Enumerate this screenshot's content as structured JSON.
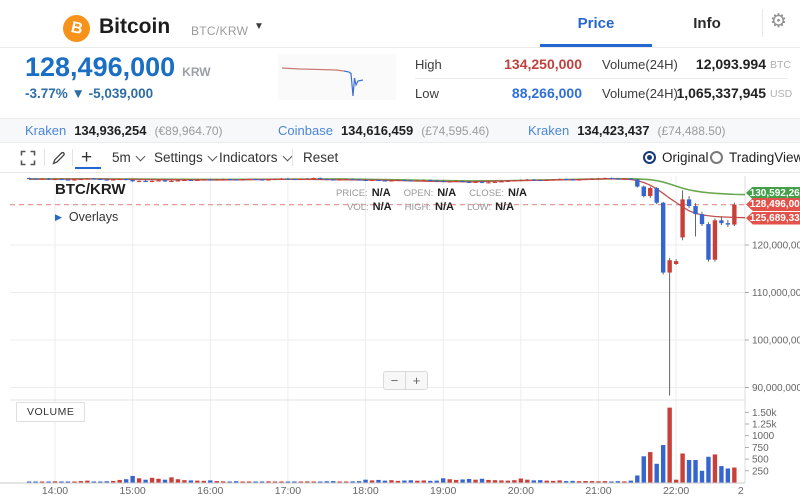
{
  "header": {
    "coin": "Bitcoin",
    "pair": "BTC/KRW",
    "tab_price": "Price",
    "tab_info": "Info"
  },
  "summary": {
    "price": "128,496,000",
    "currency": "KRW",
    "change": "-3.77% ▼ -5,039,000"
  },
  "stats": {
    "high_label": "High",
    "high_value": "134,250,000",
    "low_label": "Low",
    "low_value": "88,266,000",
    "vol_label": "Volume(24H)",
    "vol_btc": "12,093.994",
    "btc_unit": "BTC",
    "vol_usd": "1,065,337,945",
    "usd_unit": "USD"
  },
  "markets": [
    {
      "exchange": "Kraken",
      "price": "134,936,254",
      "fiat": "(€89,964.70)"
    },
    {
      "exchange": "Coinbase",
      "price": "134,616,459",
      "fiat": "(£74,595.46)"
    },
    {
      "exchange": "Kraken",
      "price": "134,423,437",
      "fiat": "(£74,488.50)"
    }
  ],
  "toolbar": {
    "interval": "5m",
    "settings": "Settings",
    "indicators": "Indicators",
    "reset": "Reset",
    "original": "Original",
    "tradingview": "TradingView",
    "plus": "+"
  },
  "chart_ui": {
    "pair": "BTC/KRW",
    "price_label": "PRICE:",
    "open_label": "OPEN:",
    "close_label": "CLOSE:",
    "vol_label": "VOL:",
    "high_label": "HIGH:",
    "low_label": "LOW:",
    "na": "N/A",
    "overlays": "Overlays",
    "volume_pane": "VOLUME",
    "minus": "−",
    "plus": "+",
    "badges": [
      "130,592,260",
      "128,496,000",
      "125,689,333"
    ],
    "badge_colors": [
      "#43a047",
      "#e2524b",
      "#e2524b"
    ]
  },
  "chart_data": {
    "type": "candlestick",
    "pair": "BTC/KRW",
    "interval": "5m",
    "price_unit": "million KRW",
    "current_price": 128.496,
    "colors": {
      "up": "#c9403b",
      "down": "#3565cf",
      "ma_fast": "#bf4f4d",
      "ma_slow": "#6aa84f",
      "wick": "#555555",
      "current_line": "#e29a9a",
      "grid": "#ededed"
    },
    "price_ticks": [
      {
        "v": 120,
        "label": "120,000,000"
      },
      {
        "v": 110,
        "label": "110,000,000"
      },
      {
        "v": 100,
        "label": "100,000,000"
      },
      {
        "v": 90,
        "label": "90,000,000"
      }
    ],
    "volume_ticks": [
      {
        "v": 1500,
        "label": "1.50k"
      },
      {
        "v": 1250,
        "label": "1.25k"
      },
      {
        "v": 1000,
        "label": "1000"
      },
      {
        "v": 750,
        "label": "750"
      },
      {
        "v": 500,
        "label": "500"
      },
      {
        "v": 250,
        "label": "250"
      }
    ],
    "time_labels": [
      {
        "i": 4,
        "label": "14:00"
      },
      {
        "i": 16,
        "label": "15:00"
      },
      {
        "i": 28,
        "label": "16:00"
      },
      {
        "i": 40,
        "label": "17:00"
      },
      {
        "i": 52,
        "label": "18:00"
      },
      {
        "i": 64,
        "label": "19:00"
      },
      {
        "i": 76,
        "label": "20:00"
      },
      {
        "i": 88,
        "label": "21:00"
      },
      {
        "i": 100,
        "label": "22:00"
      },
      {
        "i": 110,
        "label": "2"
      }
    ],
    "ma_slow_points": [
      [
        0,
        133.9
      ],
      [
        10,
        133.95
      ],
      [
        20,
        133.85
      ],
      [
        30,
        133.8
      ],
      [
        40,
        133.85
      ],
      [
        48,
        133.9
      ],
      [
        56,
        133.75
      ],
      [
        62,
        133.6
      ],
      [
        68,
        133.5
      ],
      [
        74,
        133.55
      ],
      [
        80,
        133.7
      ],
      [
        86,
        133.85
      ],
      [
        91,
        133.95
      ],
      [
        94,
        133.9
      ],
      [
        96,
        133.75
      ],
      [
        97,
        133.55
      ],
      [
        98,
        133.25
      ],
      [
        99,
        132.85
      ],
      [
        100,
        132.4
      ],
      [
        101,
        131.95
      ],
      [
        102,
        131.6
      ],
      [
        103,
        131.35
      ],
      [
        104,
        131.15
      ],
      [
        105,
        131.0
      ],
      [
        106,
        130.88
      ],
      [
        107,
        130.8
      ],
      [
        108,
        130.72
      ],
      [
        109,
        130.66
      ],
      [
        112,
        130.59
      ]
    ],
    "ma_fast_points": [
      [
        0,
        133.85
      ],
      [
        10,
        133.9
      ],
      [
        20,
        133.75
      ],
      [
        30,
        133.7
      ],
      [
        40,
        133.85
      ],
      [
        48,
        133.75
      ],
      [
        56,
        133.6
      ],
      [
        62,
        133.4
      ],
      [
        68,
        133.3
      ],
      [
        74,
        133.5
      ],
      [
        80,
        133.65
      ],
      [
        86,
        133.8
      ],
      [
        90,
        133.95
      ],
      [
        93,
        133.8
      ],
      [
        94,
        133.55
      ],
      [
        95,
        133.15
      ],
      [
        96,
        132.6
      ],
      [
        97,
        131.8
      ],
      [
        98,
        130.85
      ],
      [
        99,
        129.85
      ],
      [
        100,
        128.95
      ],
      [
        101,
        128.0
      ],
      [
        102,
        127.2
      ],
      [
        103,
        126.65
      ],
      [
        104,
        126.35
      ],
      [
        105,
        126.15
      ],
      [
        106,
        126.0
      ],
      [
        107,
        125.92
      ],
      [
        108,
        125.87
      ],
      [
        109,
        125.82
      ],
      [
        112,
        125.69
      ]
    ],
    "candles": [
      [
        "13:40",
        134.1,
        134.2,
        133.9,
        134.0,
        18
      ],
      [
        "13:45",
        134.0,
        134.1,
        133.8,
        133.9,
        12
      ],
      [
        "13:50",
        133.9,
        134.1,
        133.8,
        134.0,
        15
      ],
      [
        "13:55",
        134.0,
        134.1,
        133.7,
        133.8,
        20
      ],
      [
        "14:00",
        133.8,
        134.0,
        133.7,
        133.9,
        25
      ],
      [
        "14:05",
        133.9,
        134.0,
        133.7,
        133.8,
        14
      ],
      [
        "14:10",
        133.8,
        133.9,
        133.6,
        133.7,
        16
      ],
      [
        "14:15",
        133.7,
        133.9,
        133.6,
        133.8,
        12
      ],
      [
        "14:20",
        133.8,
        134.0,
        133.7,
        133.9,
        30
      ],
      [
        "14:25",
        133.9,
        134.1,
        133.8,
        134.0,
        40
      ],
      [
        "14:30",
        134.0,
        134.1,
        133.8,
        133.9,
        22
      ],
      [
        "14:35",
        133.9,
        134.0,
        133.7,
        133.8,
        18
      ],
      [
        "14:40",
        133.8,
        133.9,
        133.6,
        133.7,
        26
      ],
      [
        "14:45",
        133.7,
        133.9,
        133.6,
        133.8,
        34
      ],
      [
        "14:50",
        133.8,
        134.0,
        133.7,
        133.9,
        55
      ],
      [
        "14:55",
        133.9,
        134.0,
        133.6,
        133.7,
        70
      ],
      [
        "15:00",
        133.7,
        133.8,
        133.3,
        133.4,
        140
      ],
      [
        "15:05",
        133.4,
        133.6,
        133.2,
        133.5,
        90
      ],
      [
        "15:10",
        133.5,
        133.7,
        133.3,
        133.4,
        60
      ],
      [
        "15:15",
        133.4,
        133.6,
        133.2,
        133.5,
        100
      ],
      [
        "15:20",
        133.5,
        133.7,
        133.4,
        133.6,
        80
      ],
      [
        "15:25",
        133.6,
        133.7,
        133.3,
        133.4,
        60
      ],
      [
        "15:30",
        133.4,
        133.6,
        133.3,
        133.5,
        110
      ],
      [
        "15:35",
        133.5,
        133.7,
        133.4,
        133.6,
        70
      ],
      [
        "15:40",
        133.6,
        133.8,
        133.5,
        133.7,
        50
      ],
      [
        "15:45",
        133.7,
        133.8,
        133.5,
        133.6,
        45
      ],
      [
        "15:50",
        133.6,
        133.8,
        133.5,
        133.7,
        40
      ],
      [
        "15:55",
        133.7,
        133.9,
        133.6,
        133.8,
        35
      ],
      [
        "16:00",
        133.8,
        133.9,
        133.6,
        133.7,
        45
      ],
      [
        "16:05",
        133.7,
        133.9,
        133.6,
        133.8,
        30
      ],
      [
        "16:10",
        133.8,
        134.0,
        133.7,
        133.9,
        25
      ],
      [
        "16:15",
        133.9,
        134.0,
        133.7,
        133.8,
        20
      ],
      [
        "16:20",
        133.8,
        133.9,
        133.6,
        133.7,
        28
      ],
      [
        "16:25",
        133.7,
        133.9,
        133.6,
        133.8,
        18
      ],
      [
        "16:30",
        133.8,
        134.0,
        133.7,
        133.9,
        22
      ],
      [
        "16:35",
        133.9,
        134.0,
        133.7,
        133.8,
        15
      ],
      [
        "16:40",
        133.8,
        133.9,
        133.6,
        133.7,
        20
      ],
      [
        "16:45",
        133.7,
        133.9,
        133.6,
        133.8,
        25
      ],
      [
        "16:50",
        133.8,
        134.0,
        133.7,
        133.9,
        18
      ],
      [
        "16:55",
        133.9,
        134.1,
        133.8,
        134.0,
        22
      ],
      [
        "17:00",
        134.0,
        134.1,
        133.8,
        133.9,
        20
      ],
      [
        "17:05",
        133.9,
        134.0,
        133.7,
        133.8,
        15
      ],
      [
        "17:10",
        133.8,
        134.0,
        133.7,
        133.9,
        18
      ],
      [
        "17:15",
        133.9,
        134.1,
        133.8,
        134.0,
        24
      ],
      [
        "17:20",
        134.0,
        134.2,
        133.9,
        134.1,
        16
      ],
      [
        "17:25",
        134.1,
        134.2,
        133.8,
        133.9,
        20
      ],
      [
        "17:30",
        133.9,
        134.0,
        133.7,
        133.8,
        26
      ],
      [
        "17:35",
        133.8,
        133.9,
        133.6,
        133.7,
        30
      ],
      [
        "17:40",
        133.7,
        133.9,
        133.6,
        133.8,
        22
      ],
      [
        "17:45",
        133.8,
        134.0,
        133.7,
        133.9,
        18
      ],
      [
        "17:50",
        133.9,
        134.0,
        133.7,
        133.8,
        24
      ],
      [
        "17:55",
        133.8,
        133.9,
        133.6,
        133.7,
        28
      ],
      [
        "18:00",
        133.7,
        133.8,
        133.5,
        133.6,
        60
      ],
      [
        "18:05",
        133.6,
        133.8,
        133.5,
        133.7,
        45
      ],
      [
        "18:10",
        133.7,
        133.8,
        133.5,
        133.6,
        55
      ],
      [
        "18:15",
        133.6,
        133.7,
        133.4,
        133.5,
        40
      ],
      [
        "18:20",
        133.5,
        133.7,
        133.4,
        133.6,
        50
      ],
      [
        "18:25",
        133.6,
        133.8,
        133.5,
        133.7,
        35
      ],
      [
        "18:30",
        133.7,
        133.8,
        133.5,
        133.6,
        42
      ],
      [
        "18:35",
        133.6,
        133.7,
        133.4,
        133.5,
        48
      ],
      [
        "18:40",
        133.5,
        133.7,
        133.4,
        133.6,
        38
      ],
      [
        "18:45",
        133.6,
        133.8,
        133.5,
        133.7,
        44
      ],
      [
        "18:50",
        133.7,
        133.8,
        133.5,
        133.6,
        36
      ],
      [
        "18:55",
        133.6,
        133.7,
        133.4,
        133.5,
        40
      ],
      [
        "19:00",
        133.5,
        133.6,
        133.2,
        133.3,
        90
      ],
      [
        "19:05",
        133.3,
        133.5,
        133.2,
        133.4,
        70
      ],
      [
        "19:10",
        133.4,
        133.6,
        133.3,
        133.5,
        55
      ],
      [
        "19:15",
        133.5,
        133.6,
        133.2,
        133.3,
        65
      ],
      [
        "19:20",
        133.3,
        133.5,
        133.1,
        133.2,
        75
      ],
      [
        "19:25",
        133.2,
        133.4,
        133.1,
        133.3,
        60
      ],
      [
        "19:30",
        133.3,
        133.4,
        133.0,
        133.1,
        80
      ],
      [
        "19:35",
        133.1,
        133.3,
        133.0,
        133.2,
        55
      ],
      [
        "19:40",
        133.2,
        133.4,
        133.1,
        133.3,
        50
      ],
      [
        "19:45",
        133.3,
        133.5,
        133.2,
        133.4,
        45
      ],
      [
        "19:50",
        133.4,
        133.6,
        133.3,
        133.5,
        40
      ],
      [
        "19:55",
        133.5,
        133.7,
        133.4,
        133.6,
        50
      ],
      [
        "20:00",
        133.6,
        133.8,
        133.5,
        133.7,
        85
      ],
      [
        "20:05",
        133.7,
        133.9,
        133.6,
        133.8,
        60
      ],
      [
        "20:10",
        133.8,
        133.9,
        133.6,
        133.7,
        45
      ],
      [
        "20:15",
        133.7,
        133.8,
        133.5,
        133.6,
        50
      ],
      [
        "20:20",
        133.6,
        133.8,
        133.5,
        133.7,
        40
      ],
      [
        "20:25",
        133.7,
        133.9,
        133.6,
        133.8,
        35
      ],
      [
        "20:30",
        133.8,
        134.0,
        133.7,
        133.9,
        45
      ],
      [
        "20:35",
        133.9,
        134.0,
        133.7,
        133.8,
        30
      ],
      [
        "20:40",
        133.8,
        133.9,
        133.6,
        133.7,
        35
      ],
      [
        "20:45",
        133.7,
        133.9,
        133.6,
        133.8,
        28
      ],
      [
        "20:50",
        133.8,
        134.0,
        133.7,
        133.9,
        32
      ],
      [
        "20:55",
        133.9,
        134.1,
        133.8,
        134.0,
        30
      ],
      [
        "21:00",
        133.9,
        134.1,
        133.8,
        134.0,
        25
      ],
      [
        "21:05",
        134.0,
        134.2,
        133.9,
        134.1,
        30
      ],
      [
        "21:10",
        134.1,
        134.2,
        133.9,
        134.0,
        22
      ],
      [
        "21:15",
        134.0,
        134.1,
        133.8,
        133.9,
        28
      ],
      [
        "21:20",
        133.9,
        134.1,
        133.8,
        134.0,
        24
      ],
      [
        "21:25",
        134.0,
        134.1,
        133.7,
        133.8,
        40
      ],
      [
        "21:30",
        133.8,
        133.9,
        132.1,
        132.3,
        150
      ],
      [
        "21:35",
        132.3,
        132.5,
        130.0,
        130.3,
        560
      ],
      [
        "21:40",
        130.3,
        132.3,
        129.9,
        132.0,
        650
      ],
      [
        "21:45",
        132.0,
        132.2,
        128.6,
        128.9,
        400
      ],
      [
        "21:50",
        128.9,
        129.1,
        113.8,
        114.2,
        800
      ],
      [
        "21:55",
        114.2,
        117.3,
        88.3,
        116.8,
        1600
      ],
      [
        "22:00",
        116.0,
        117.0,
        115.8,
        116.6,
        60
      ],
      [
        "22:05",
        121.6,
        131.5,
        121.0,
        129.6,
        620
      ],
      [
        "22:10",
        129.6,
        130.3,
        127.8,
        128.2,
        480
      ],
      [
        "22:15",
        128.2,
        128.8,
        121.8,
        126.5,
        480
      ],
      [
        "22:20",
        126.5,
        127.0,
        124.0,
        124.4,
        250
      ],
      [
        "22:25",
        124.4,
        124.8,
        116.5,
        116.9,
        550
      ],
      [
        "22:30",
        116.9,
        125.6,
        116.5,
        125.2,
        600
      ],
      [
        "22:35",
        125.2,
        126.0,
        124.2,
        124.6,
        350
      ],
      [
        "22:40",
        124.6,
        125.3,
        123.8,
        124.3,
        300
      ],
      [
        "22:45",
        124.3,
        128.9,
        124.0,
        128.5,
        320
      ]
    ],
    "sparkline": {
      "red": [
        [
          4,
          14
        ],
        [
          22,
          15
        ],
        [
          42,
          15.5
        ],
        [
          58,
          16
        ],
        [
          66,
          17
        ]
      ],
      "blue": [
        [
          66,
          17
        ],
        [
          71,
          18
        ],
        [
          73,
          19.5
        ],
        [
          75,
          42
        ],
        [
          76.5,
          24
        ],
        [
          78,
          31
        ],
        [
          80,
          27
        ],
        [
          85,
          26
        ]
      ]
    }
  }
}
